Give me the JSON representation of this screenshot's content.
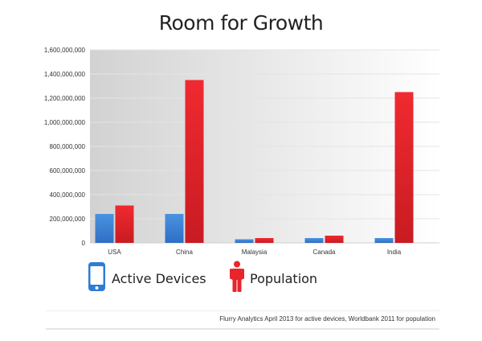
{
  "chart_data": {
    "type": "bar",
    "title": "Room for Growth",
    "categories": [
      "USA",
      "China",
      "Malaysia",
      "Canada",
      "India"
    ],
    "series": [
      {
        "name": "Active Devices",
        "values": [
          240000000,
          240000000,
          30000000,
          40000000,
          40000000
        ],
        "color": "#3a86d6"
      },
      {
        "name": "Population",
        "values": [
          310000000,
          1350000000,
          40000000,
          60000000,
          1250000000
        ],
        "color": "#e8252b"
      }
    ],
    "ylim": [
      0,
      1600000000
    ],
    "yticks": [
      0,
      200000000,
      400000000,
      600000000,
      800000000,
      1000000000,
      1200000000,
      1400000000,
      1600000000
    ],
    "ytick_labels": [
      "0",
      "200,000,000",
      "400,000,000",
      "600,000,000",
      "800,000,000",
      "1,000,000,000",
      "1,200,000,000",
      "1,400,000,000",
      "1,600,000,000"
    ],
    "xlabel": "",
    "ylabel": "",
    "grid": true,
    "legend_position": "bottom-left"
  },
  "legend": {
    "devices_label": "Active Devices",
    "population_label": "Population",
    "devices_icon": "phone-icon",
    "population_icon": "person-icon"
  },
  "source": "Flurry Analytics April 2013 for active devices, Worldbank 2011 for population"
}
